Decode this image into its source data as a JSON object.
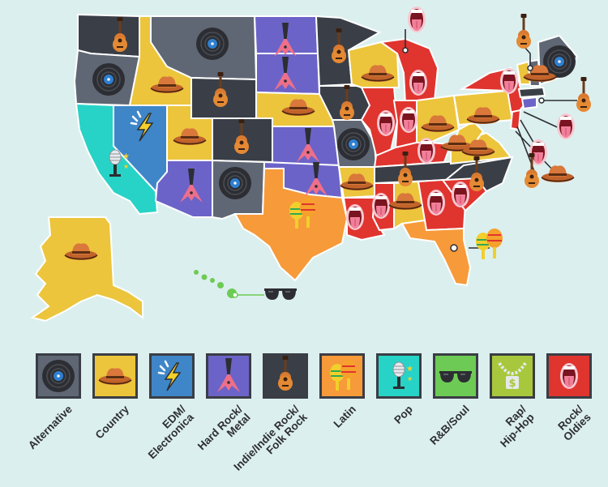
{
  "genres": [
    {
      "label": "Alternative",
      "color": "#5f6774",
      "icon": "vinyl-record-icon"
    },
    {
      "label": "Country",
      "color": "#ecc53c",
      "icon": "cowboy-hat-icon"
    },
    {
      "label": "EDM/\nElectronica",
      "color": "#3f86c9",
      "icon": "lightning-bolt-icon"
    },
    {
      "label": "Hard Rock/\nMetal",
      "color": "#6c63c8",
      "icon": "flying-v-guitar-icon"
    },
    {
      "label": "Indie/Indie Rock/\nFolk Rock",
      "color": "#3a3f47",
      "icon": "acoustic-guitar-icon"
    },
    {
      "label": "Latin",
      "color": "#f79a3a",
      "icon": "maracas-icon"
    },
    {
      "label": "Pop",
      "color": "#27d3c6",
      "icon": "microphone-icon"
    },
    {
      "label": "R&B/Soul",
      "color": "#6dcb55",
      "icon": "sunglasses-icon"
    },
    {
      "label": "Rap/\nHip-Hop",
      "color": "#a7c83c",
      "icon": "chain-necklace-icon"
    },
    {
      "label": "Rock/\nOldies",
      "color": "#e0342f",
      "icon": "mouth-tongue-icon"
    }
  ]
}
